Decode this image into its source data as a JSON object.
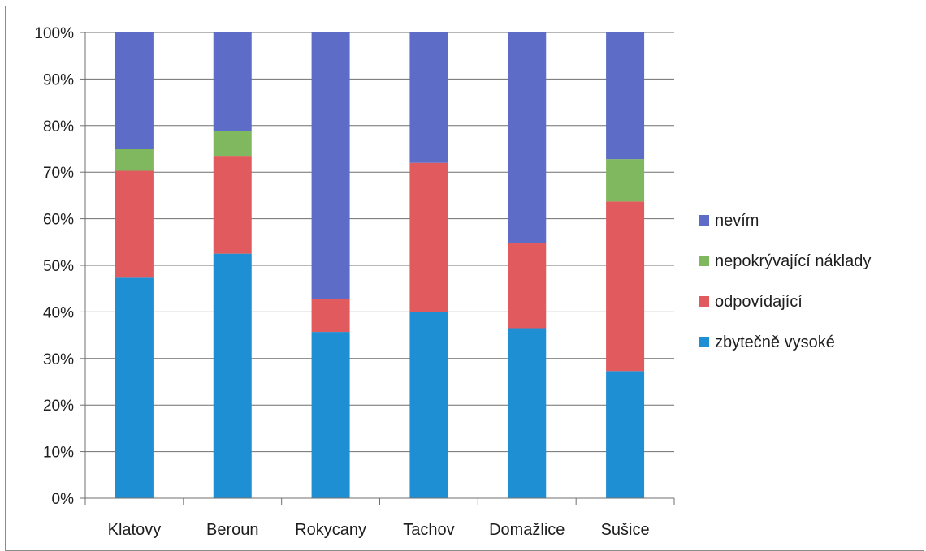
{
  "chart_data": {
    "type": "bar",
    "stacked": true,
    "percent_stacked": true,
    "categories": [
      "Klatovy",
      "Beroun",
      "Rokycany",
      "Tachov",
      "Domažlice",
      "Sušice"
    ],
    "series": [
      {
        "name": "zbytečně vysoké",
        "color": "#1f8fd4",
        "values": [
          47.5,
          52.5,
          35.7,
          40.0,
          36.5,
          27.3
        ]
      },
      {
        "name": "odpovídající",
        "color": "#e05a5e",
        "values": [
          22.8,
          21.0,
          7.1,
          32.0,
          18.3,
          36.4
        ]
      },
      {
        "name": "nepokrývající náklady",
        "color": "#7fb85e",
        "values": [
          4.7,
          5.3,
          0,
          0,
          0,
          9.1
        ]
      },
      {
        "name": "nevím",
        "color": "#5d6dc7",
        "values": [
          25.0,
          21.2,
          57.2,
          28.0,
          45.2,
          27.2
        ]
      }
    ],
    "ylim": [
      0,
      100
    ],
    "yticks": [
      "0%",
      "10%",
      "20%",
      "30%",
      "40%",
      "50%",
      "60%",
      "70%",
      "80%",
      "90%",
      "100%"
    ],
    "grid": true,
    "legend_position": "right",
    "legend_order": [
      "nevím",
      "nepokrývající náklady",
      "odpovídající",
      "zbytečně vysoké"
    ]
  }
}
